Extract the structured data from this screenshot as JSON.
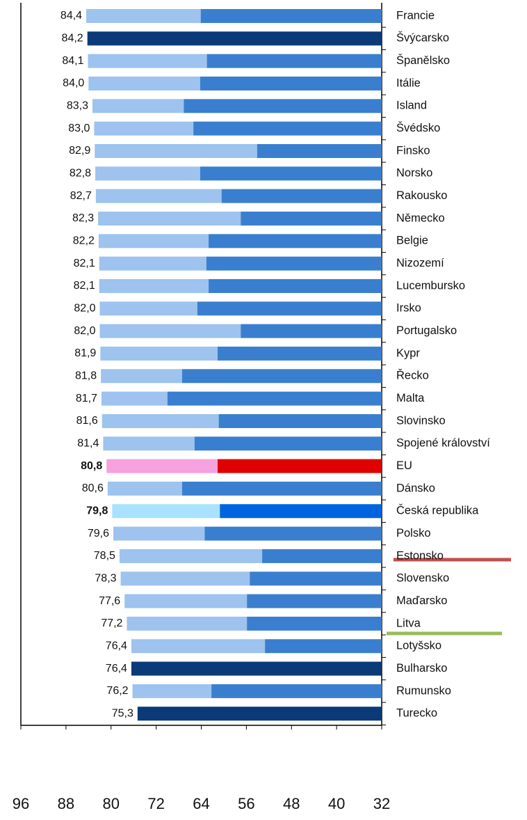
{
  "chart_data": {
    "type": "bar",
    "categories": [
      "Francie",
      "Švýcarsko",
      "Španělsko",
      "Itálie",
      "Island",
      "Švédsko",
      "Finsko",
      "Norsko",
      "Rakousko",
      "Německo",
      "Belgie",
      "Nizozemí",
      "Lucembursko",
      "Irsko",
      "Portugalsko",
      "Kypr",
      "Řecko",
      "Malta",
      "Slovinsko",
      "Spojené království",
      "EU",
      "Dánsko",
      "Česká republika",
      "Polsko",
      "Estonsko",
      "Slovensko",
      "Maďarsko",
      "Litva",
      "Lotyšsko",
      "Bulharsko",
      "Rumunsko",
      "Turecko"
    ],
    "values": [
      84.4,
      84.2,
      84.1,
      84.0,
      83.3,
      83.0,
      82.9,
      82.8,
      82.7,
      82.3,
      82.2,
      82.1,
      82.1,
      82.0,
      82.0,
      81.9,
      81.8,
      81.7,
      81.6,
      81.4,
      80.8,
      80.6,
      79.8,
      79.6,
      78.5,
      78.3,
      77.6,
      77.2,
      76.4,
      76.4,
      76.2,
      75.3
    ],
    "value_labels": [
      "84,4",
      "84,2",
      "84,1",
      "84,0",
      "83,3",
      "83,0",
      "82,9",
      "82,8",
      "82,7",
      "82,3",
      "82,2",
      "82,1",
      "82,1",
      "82,0",
      "82,0",
      "81,9",
      "81,8",
      "81,7",
      "81,6",
      "81,4",
      "80,8",
      "80,6",
      "79,8",
      "79,6",
      "78,5",
      "78,3",
      "77,6",
      "77,2",
      "76,4",
      "76,4",
      "76,2",
      "75,3"
    ],
    "split": [
      64.1,
      null,
      63.0,
      64.2,
      67.1,
      65.4,
      54.1,
      64.2,
      60.4,
      57.0,
      62.7,
      63.1,
      62.7,
      64.7,
      57.0,
      61.1,
      67.4,
      70.0,
      60.9,
      65.2,
      61.1,
      67.4,
      60.7,
      63.4,
      53.2,
      55.4,
      55.9,
      55.9,
      52.7,
      null,
      62.2,
      null
    ],
    "light_color": "#9dc3ee",
    "dark_color": "#3a7fcf",
    "solid_color": "#0a3a78",
    "highlights": {
      "20": [
        "#f7a1de",
        "#e00000"
      ],
      "22": [
        "#a8e2ff",
        "#0064de"
      ]
    },
    "bold": [
      20,
      22
    ],
    "xlim": [
      96,
      32
    ],
    "xticks": [
      96,
      88,
      80,
      72,
      64,
      56,
      48,
      40,
      32
    ]
  }
}
